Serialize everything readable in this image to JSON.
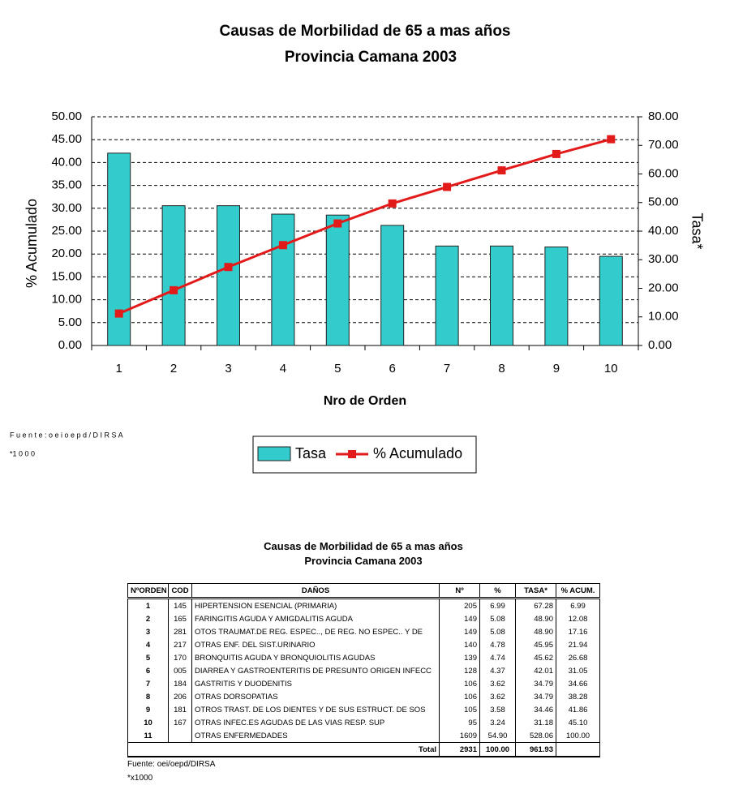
{
  "chart_data": {
    "type": "bar",
    "title": "Causas de Morbilidad de 65 a mas años",
    "subtitle": "Provincia Camana 2003",
    "xlabel": "Nro de Orden",
    "ylabel": "% Acumulado",
    "y2label": "Tasa*",
    "categories": [
      "1",
      "2",
      "3",
      "4",
      "5",
      "6",
      "7",
      "8",
      "9",
      "10"
    ],
    "series": [
      {
        "name": "Tasa",
        "type": "bar",
        "axis": "y2",
        "color": "#33cccc",
        "values": [
          67.28,
          48.9,
          48.9,
          45.95,
          45.62,
          42.01,
          34.79,
          34.79,
          34.46,
          31.18
        ]
      },
      {
        "name": "% Acumulado",
        "type": "line",
        "color": "#e31a1a",
        "values": [
          6.99,
          12.08,
          17.16,
          21.94,
          26.68,
          31.05,
          34.66,
          38.28,
          41.86,
          45.1
        ]
      }
    ],
    "ylim": [
      0,
      50
    ],
    "yticks": [
      {
        "value": 0,
        "label": "0.00"
      },
      {
        "value": 5,
        "label": "5.00"
      },
      {
        "value": 10,
        "label": "10.00"
      },
      {
        "value": 15,
        "label": "15.00"
      },
      {
        "value": 20,
        "label": "20.00"
      },
      {
        "value": 25,
        "label": "25.00"
      },
      {
        "value": 30,
        "label": "30.00"
      },
      {
        "value": 35,
        "label": "35.00"
      },
      {
        "value": 40,
        "label": "40.00"
      },
      {
        "value": 45,
        "label": "45.00"
      },
      {
        "value": 50,
        "label": "50.00"
      }
    ],
    "y2lim": [
      0,
      80
    ],
    "y2ticks": [
      {
        "value": 0,
        "label": "0.00"
      },
      {
        "value": 10,
        "label": "10.00"
      },
      {
        "value": 20,
        "label": "20.00"
      },
      {
        "value": 30,
        "label": "30.00"
      },
      {
        "value": 40,
        "label": "40.00"
      },
      {
        "value": 50,
        "label": "50.00"
      },
      {
        "value": 60,
        "label": "60.00"
      },
      {
        "value": 70,
        "label": "70.00"
      },
      {
        "value": 80,
        "label": "80.00"
      }
    ],
    "grid": true,
    "legend": "bottom"
  },
  "footnotes": [
    "F u e n t e : o e i o e p d / D I R S A",
    "*1 0 0 0"
  ],
  "table": {
    "title": "Causas de Morbilidad de 65 a mas años",
    "subtitle": "Provincia Camana 2003",
    "header": [
      "NºORDEN",
      "COD",
      "DAÑOS",
      "Nº",
      "%",
      "TASA*",
      "% ACUM."
    ],
    "rows": [
      [
        "1",
        "145",
        "HIPERTENSION ESENCIAL (PRIMARIA)",
        "205",
        "6.99",
        "67.28",
        "6.99"
      ],
      [
        "2",
        "165",
        "FARINGITIS AGUDA Y AMIGDALITIS AGUDA",
        "149",
        "5.08",
        "48.90",
        "12.08"
      ],
      [
        "3",
        "281",
        "OTOS TRAUMAT.DE REG. ESPEC.., DE REG. NO ESPEC.. Y DE",
        "149",
        "5.08",
        "48.90",
        "17.16"
      ],
      [
        "4",
        "217",
        "OTRAS ENF. DEL SIST.URINARIO",
        "140",
        "4.78",
        "45.95",
        "21.94"
      ],
      [
        "5",
        "170",
        "BRONQUITIS AGUDA Y BRONQUIOLITIS AGUDAS",
        "139",
        "4.74",
        "45.62",
        "26.68"
      ],
      [
        "6",
        "005",
        "DIARREA Y GASTROENTERITIS DE PRESUNTO ORIGEN INFECC",
        "128",
        "4.37",
        "42.01",
        "31.05"
      ],
      [
        "7",
        "184",
        "GASTRITIS Y DUODENITIS",
        "106",
        "3.62",
        "34.79",
        "34.66"
      ],
      [
        "8",
        "206",
        "OTRAS DORSOPATIAS",
        "106",
        "3.62",
        "34.79",
        "38.28"
      ],
      [
        "9",
        "181",
        "OTROS TRAST. DE LOS DIENTES Y DE SUS ESTRUCT. DE SOS",
        "105",
        "3.58",
        "34.46",
        "41.86"
      ],
      [
        "10",
        "167",
        "OTRAS INFEC.ES AGUDAS DE LAS VIAS RESP. SUP",
        "95",
        "3.24",
        "31.18",
        "45.10"
      ],
      [
        "11",
        "",
        "OTRAS ENFERMEDADES",
        "1609",
        "54.90",
        "528.06",
        "100.00"
      ]
    ],
    "total": [
      "Total",
      "2931",
      "100.00",
      "961.93"
    ],
    "notes": [
      "Fuente: oei/oepd/DIRSA",
      "*x1000"
    ]
  }
}
